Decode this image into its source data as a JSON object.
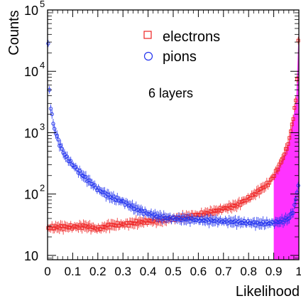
{
  "chart_data": {
    "type": "scatter",
    "title": "",
    "xlabel": "Likelihood",
    "ylabel": "Counts",
    "xlim": [
      0,
      1
    ],
    "ylim": [
      8.5,
      100000
    ],
    "yscale": "log",
    "grid": false,
    "legend_position": "top-center",
    "annotation": "6 layers",
    "x_ticks": [
      "0",
      "0.1",
      "0.2",
      "0.3",
      "0.4",
      "0.5",
      "0.6",
      "0.7",
      "0.8",
      "0.9",
      "1"
    ],
    "y_ticks": [
      {
        "base": "10",
        "exp": ""
      },
      {
        "base": "10",
        "exp": "2"
      },
      {
        "base": "10",
        "exp": "3"
      },
      {
        "base": "10",
        "exp": "4"
      },
      {
        "base": "10",
        "exp": "5"
      }
    ],
    "shaded_region": {
      "x_from": 0.9,
      "x_to": 1.0,
      "color": "#ff33ff",
      "series": "electrons"
    },
    "series": [
      {
        "name": "electrons",
        "marker": "open-square",
        "color": "#ee2222",
        "x": [
          0.0,
          0.05,
          0.1,
          0.15,
          0.2,
          0.25,
          0.3,
          0.35,
          0.4,
          0.45,
          0.5,
          0.55,
          0.6,
          0.65,
          0.7,
          0.75,
          0.8,
          0.85,
          0.88,
          0.9,
          0.92,
          0.94,
          0.96,
          0.97,
          0.98,
          0.99,
          1.0
        ],
        "y": [
          28,
          29,
          29,
          30,
          27,
          31,
          32,
          34,
          36,
          37,
          40,
          42,
          46,
          50,
          58,
          65,
          85,
          120,
          150,
          200,
          280,
          420,
          700,
          1200,
          2000,
          4000,
          60000
        ]
      },
      {
        "name": "pions",
        "marker": "open-circle",
        "color": "#2233ee",
        "x": [
          0.0,
          0.005,
          0.01,
          0.02,
          0.03,
          0.05,
          0.07,
          0.1,
          0.13,
          0.16,
          0.2,
          0.25,
          0.3,
          0.35,
          0.4,
          0.45,
          0.5,
          0.55,
          0.6,
          0.65,
          0.7,
          0.75,
          0.8,
          0.85,
          0.9,
          0.93,
          0.96,
          0.98,
          1.0
        ],
        "y": [
          80000,
          9000,
          3000,
          1600,
          1050,
          620,
          420,
          300,
          220,
          170,
          120,
          90,
          75,
          58,
          48,
          42,
          40,
          39,
          38,
          37,
          36,
          35,
          34,
          33,
          34,
          36,
          40,
          55,
          160
        ]
      }
    ]
  }
}
